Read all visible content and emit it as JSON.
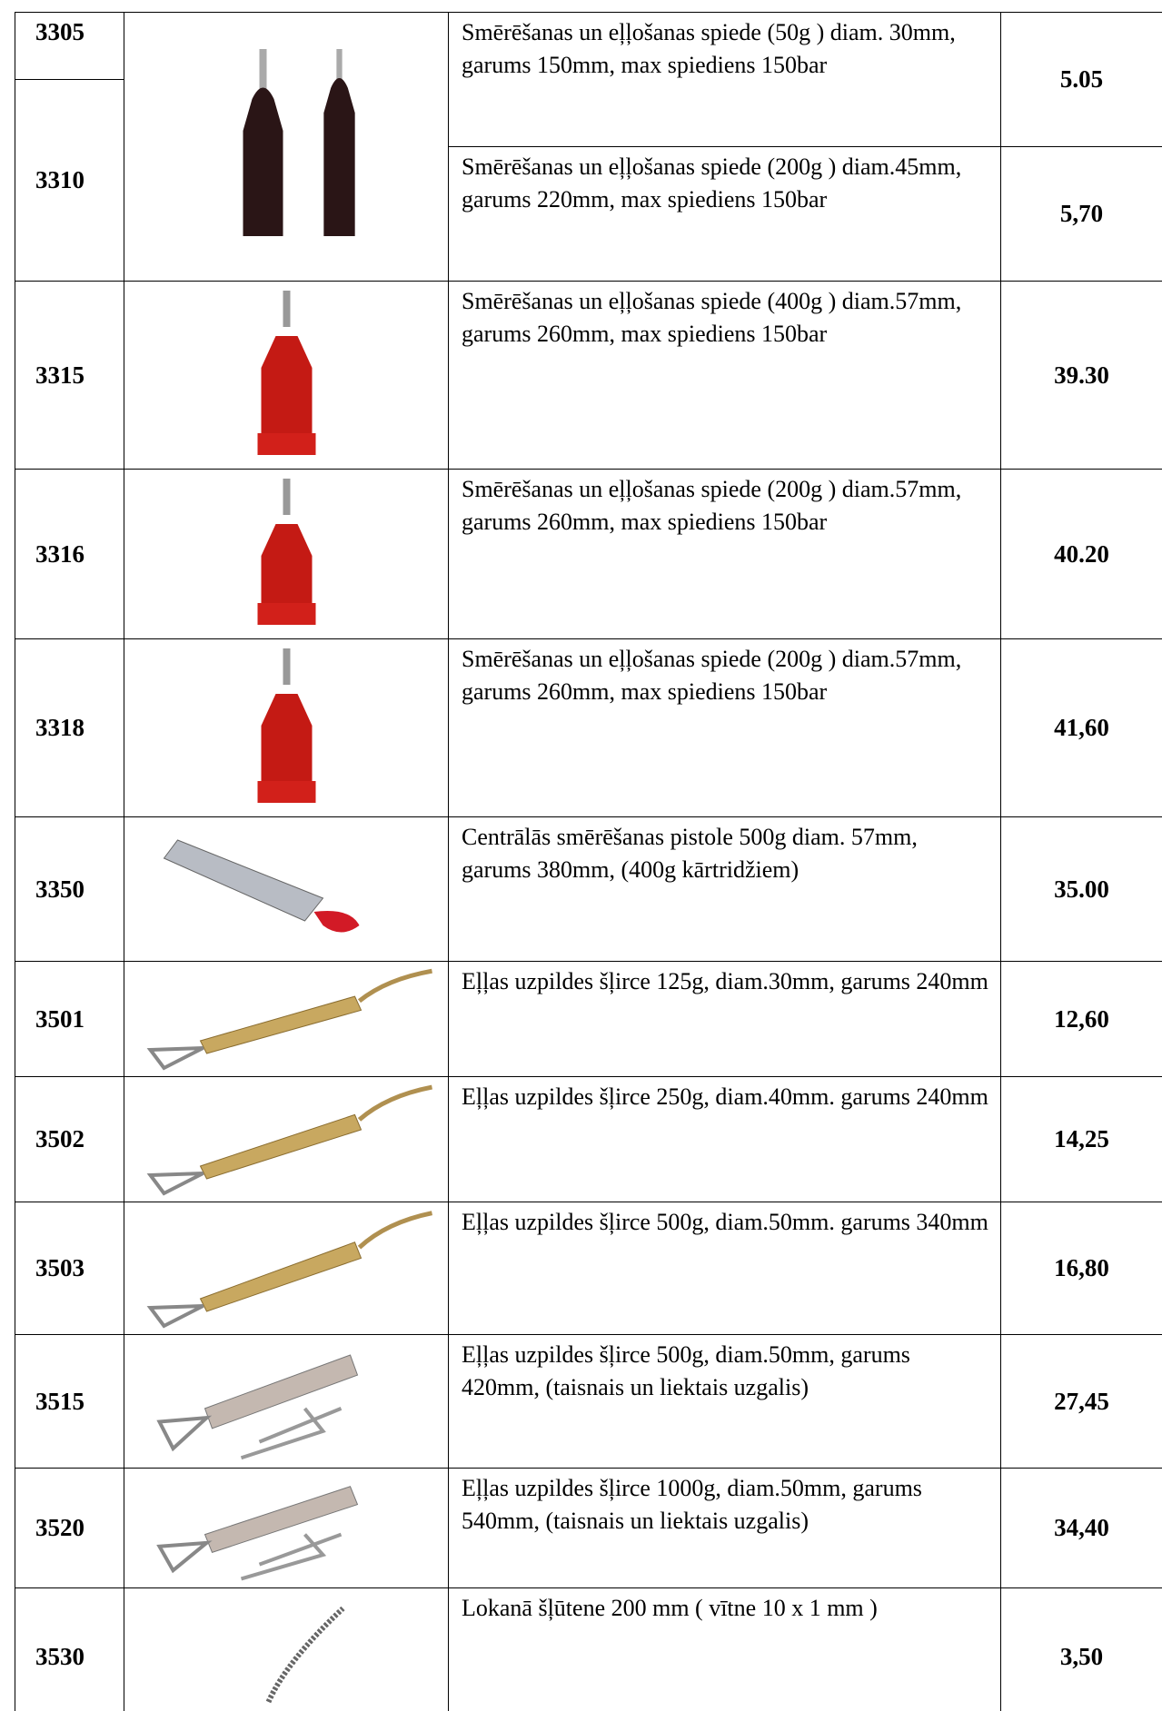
{
  "table": {
    "rows": [
      {
        "code": "3305",
        "description": "Smērēšanas un eļļošanas spiede (50g ) diam. 30mm, garums 150mm, max spiediens 150bar",
        "price": "5.05"
      },
      {
        "code": "3310",
        "description": "Smērēšanas un eļļošanas spiede (200g ) diam.45mm, garums 220mm, max spiediens 150bar",
        "price": "5,70"
      },
      {
        "code": "3315",
        "description": "Smērēšanas un eļļošanas spiede (400g ) diam.57mm, garums 260mm, max spiediens 150bar",
        "price": "39.30"
      },
      {
        "code": "3316",
        "description": "Smērēšanas un eļļošanas spiede (200g ) diam.57mm, garums 260mm, max spiediens 150bar",
        "price": "40.20"
      },
      {
        "code": "3318",
        "description": "Smērēšanas un eļļošanas spiede (200g ) diam.57mm, garums 260mm, max spiediens 150bar",
        "price": "41,60"
      },
      {
        "code": "3350",
        "description": "Centrālās smērēšanas pistole 500g  diam. 57mm, garums 380mm, (400g kārtridžiem)",
        "price": "35.00"
      },
      {
        "code": "3501",
        "description": "Eļļas uzpildes šļirce 125g, diam.30mm, garums 240mm",
        "price": "12,60"
      },
      {
        "code": "3502",
        "description": "Eļļas uzpildes šļirce 250g, diam.40mm. garums 240mm",
        "price": "14,25"
      },
      {
        "code": "3503",
        "description": "Eļļas uzpildes šļirce 500g, diam.50mm. garums 340mm",
        "price": "16,80"
      },
      {
        "code": "3515",
        "description": "Eļļas uzpildes šļirce 500g, diam.50mm, garums 420mm, (taisnais un liektais uzgalis)",
        "price": "27,45"
      },
      {
        "code": "3520",
        "description": "Eļļas uzpildes šļirce 1000g, diam.50mm, garums 540mm, (taisnais un liektais uzgalis)",
        "price": "34,40"
      },
      {
        "code": "3530",
        "description": "Lokanā šļūtene 200 mm ( vītne 10 x 1 mm )",
        "price": "3,50"
      }
    ]
  }
}
